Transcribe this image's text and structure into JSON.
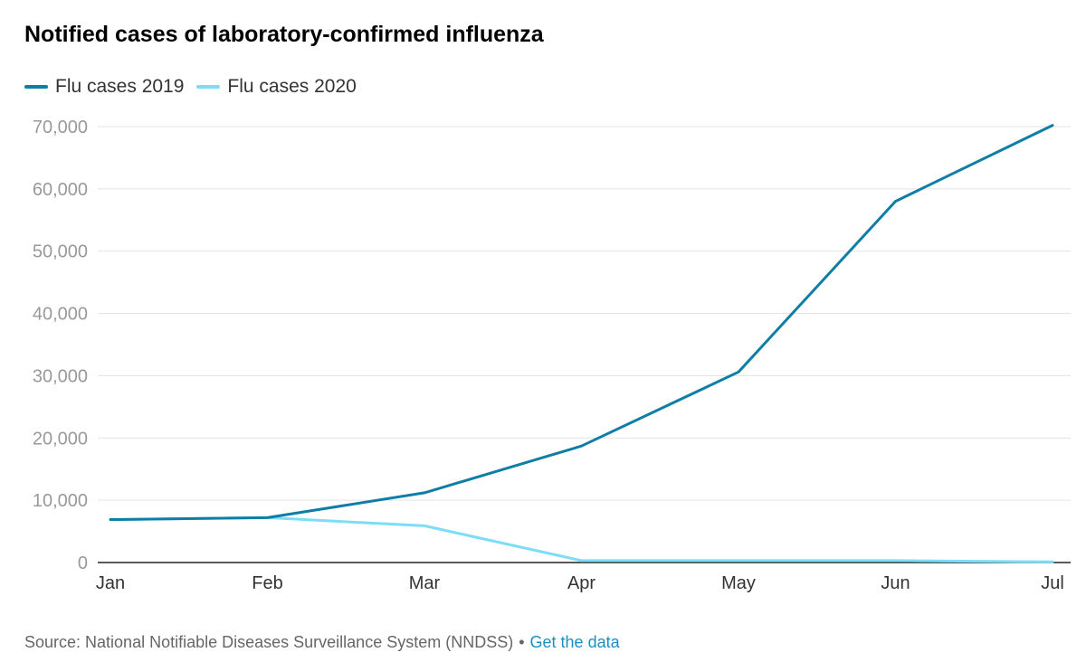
{
  "chart_data": {
    "type": "line",
    "title": "Notified cases of laboratory-confirmed influenza",
    "categories": [
      "Jan",
      "Feb",
      "Mar",
      "Apr",
      "May",
      "Jun",
      "Jul"
    ],
    "series": [
      {
        "name": "Flu cases 2019",
        "color": "#0f7ea6",
        "values": [
          6900,
          7200,
          11200,
          18700,
          30600,
          58000,
          70200
        ]
      },
      {
        "name": "Flu cases 2020",
        "color": "#7dddf6",
        "values": [
          6900,
          7200,
          5900,
          300,
          300,
          300,
          100
        ]
      }
    ],
    "ylim": [
      0,
      70000
    ],
    "yticks": [
      0,
      10000,
      20000,
      30000,
      40000,
      50000,
      60000,
      70000
    ],
    "ytick_labels": [
      "0",
      "10,000",
      "20,000",
      "30,000",
      "40,000",
      "50,000",
      "60,000",
      "70,000"
    ],
    "grid": true,
    "legend": "top-left",
    "xlabel": "",
    "ylabel": ""
  },
  "footer": {
    "source_text": "Source: National Notifiable Diseases Surveillance System (NNDSS)",
    "separator": "•",
    "link_text": "Get the data"
  }
}
